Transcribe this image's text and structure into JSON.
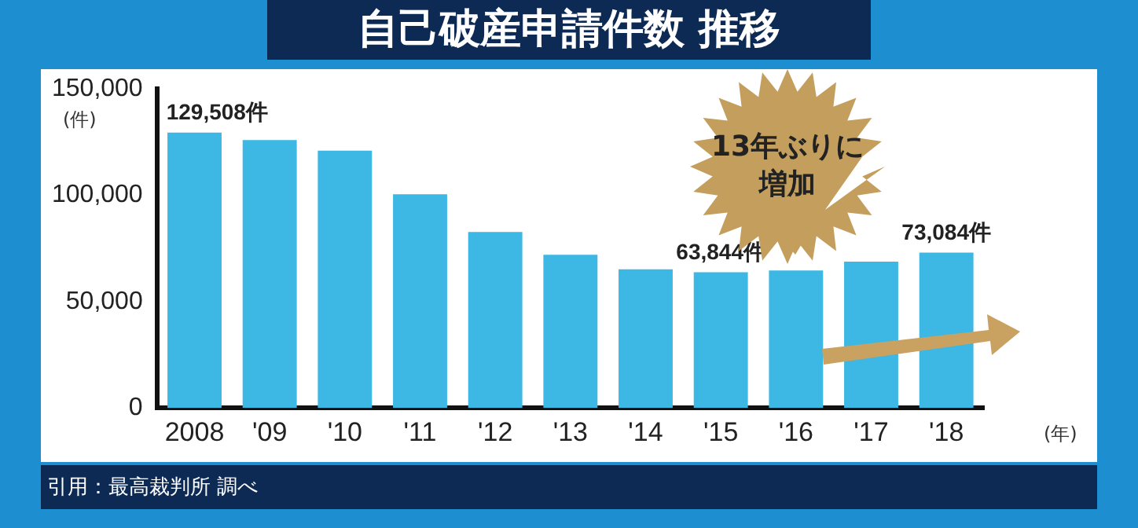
{
  "chart_data": {
    "type": "bar",
    "title": "自己破産申請件数 推移",
    "ylabel": "(件)",
    "xlabel": "(年)",
    "categories": [
      "2008",
      "'09",
      "'10",
      "'11",
      "'12",
      "'13",
      "'14",
      "'15",
      "'16",
      "'17",
      "'18"
    ],
    "values": [
      129508,
      126000,
      121000,
      100500,
      82700,
      72000,
      65200,
      63844,
      64600,
      68800,
      73084
    ],
    "value_labels": [
      "129,508件",
      null,
      null,
      null,
      null,
      null,
      null,
      "63,844件",
      null,
      null,
      "73,084件"
    ],
    "color": "#3db7e4",
    "ylim": [
      0,
      150000
    ],
    "yticks": [
      0,
      {
        "value": 50000,
        "label": "50,000"
      },
      {
        "value": 100000,
        "label": "100,000"
      },
      {
        "value": 150000,
        "label": "150,000"
      }
    ],
    "annotations": [
      "13年ぶりに増加",
      "引用：最高裁判所 調べ"
    ],
    "grid": false,
    "legend": false
  }
}
